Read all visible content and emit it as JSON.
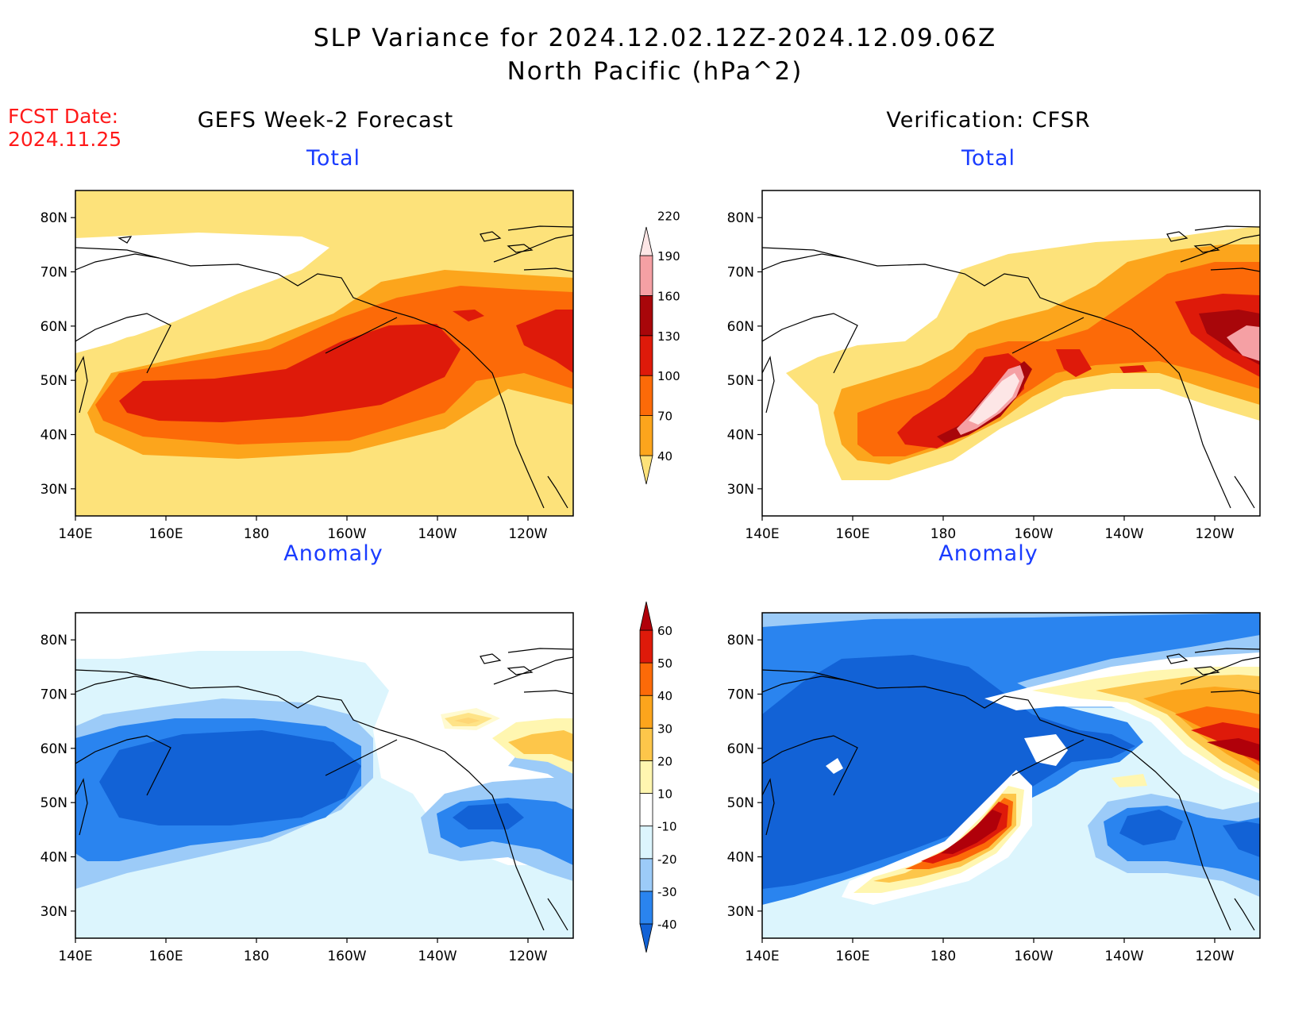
{
  "header": {
    "title_line1": "SLP Variance for 2024.12.02.12Z-2024.12.09.06Z",
    "title_line2": "North Pacific (hPa^2)",
    "fcst_label": "FCST Date:",
    "fcst_date": "2024.11.25"
  },
  "columns": {
    "forecast_title": "GEFS Week-2 Forecast",
    "verification_title": "Verification: CFSR"
  },
  "panels": [
    {
      "id": "fcst-total",
      "label": "Total",
      "field": "total"
    },
    {
      "id": "verif-total",
      "label": "Total",
      "field": "total"
    },
    {
      "id": "fcst-anomaly",
      "label": "Anomaly",
      "field": "anomaly"
    },
    {
      "id": "verif-anomaly",
      "label": "Anomaly",
      "field": "anomaly"
    }
  ],
  "axes": {
    "lat_labels": [
      "80N",
      "70N",
      "60N",
      "50N",
      "40N",
      "30N"
    ],
    "lat_values": [
      80,
      70,
      60,
      50,
      40,
      30
    ],
    "lat_range": [
      25,
      85
    ],
    "lon_labels": [
      "140E",
      "160E",
      "180",
      "160W",
      "140W",
      "120W"
    ],
    "lon_values": [
      140,
      160,
      180,
      200,
      220,
      240
    ],
    "lon_range": [
      140,
      250
    ]
  },
  "legend_total": {
    "values": [
      "40",
      "70",
      "100",
      "130",
      "160",
      "190",
      "220"
    ],
    "colors": [
      "#fde27a",
      "#fca51c",
      "#fc6a08",
      "#de1a0a",
      "#a8060a",
      "#f5a0a4",
      "#fde6e6"
    ]
  },
  "legend_anomaly": {
    "values": [
      "-40",
      "-30",
      "-20",
      "-10",
      "10",
      "20",
      "30",
      "40",
      "50",
      "60"
    ],
    "colors": [
      "#1262d6",
      "#2a84ef",
      "#9ccbf8",
      "#dcf5fd",
      "#ffffff",
      "#fff6b0",
      "#fdc64a",
      "#fca51c",
      "#fc6a08",
      "#de1a0a",
      "#b0000a"
    ]
  }
}
